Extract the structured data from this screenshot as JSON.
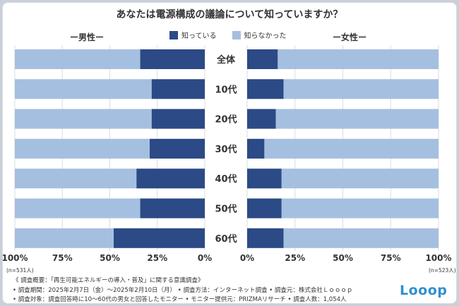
{
  "chart_data": {
    "type": "bar",
    "title": "あなたは電源構成の議論について知っていますか？",
    "series_names": [
      "知っている",
      "知らなかった"
    ],
    "colors": {
      "known": "#2b4a86",
      "unknown": "#a5bfe0"
    },
    "categories": [
      "全体",
      "10代",
      "20代",
      "30代",
      "40代",
      "50代",
      "60代"
    ],
    "xlim": [
      0,
      100
    ],
    "ticks": [
      "0%",
      "25%",
      "50%",
      "75%",
      "100%"
    ],
    "panels": [
      {
        "label": "ー男性ー",
        "n": "(n=531人)",
        "series": [
          {
            "name": "知っている",
            "values": [
              34,
              28,
              28,
              29,
              36,
              34,
              48
            ]
          },
          {
            "name": "知らなかった",
            "values": [
              66,
              72,
              72,
              71,
              64,
              66,
              52
            ]
          }
        ]
      },
      {
        "label": "ー女性ー",
        "n": "(n=523人)",
        "series": [
          {
            "name": "知っている",
            "values": [
              16,
              19,
              15,
              9,
              18,
              18,
              19
            ]
          },
          {
            "name": "知らなかった",
            "values": [
              84,
              81,
              85,
              91,
              82,
              82,
              81
            ]
          }
        ]
      }
    ]
  },
  "footer": {
    "notes": [
      "《 調査概要：「再生可能エネルギーの導入・普及」に関する意識調査》",
      "• 調査期間：2025年2月7日（金）〜2025年2月10日（月） • 調査方法：インターネット調査 • 調査元：株式会社Ｌｏｏｏｐ",
      "• 調査対象：調査回答時に10〜60代の男女と回答したモニター • モニター提供元：PRIZMAリサーチ • 調査人数：1,054人"
    ],
    "logo": "Looop"
  }
}
